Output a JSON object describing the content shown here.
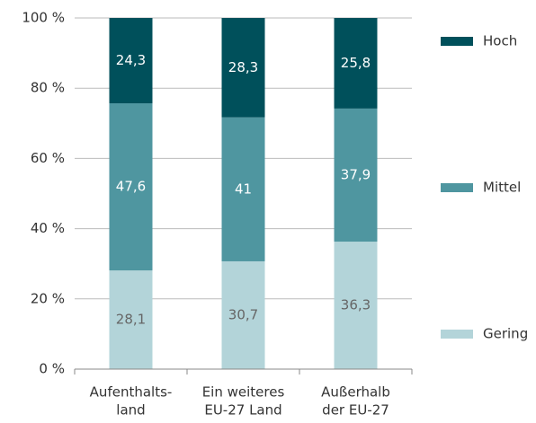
{
  "chart_data": {
    "type": "stacked_bar",
    "categories": [
      [
        "Aufenthalts-",
        "land"
      ],
      [
        "Ein weiteres",
        "EU-27 Land"
      ],
      [
        "Außerhalb",
        "der EU-27"
      ]
    ],
    "series": [
      {
        "name": "Gering",
        "color": "#b3d4d9",
        "label_color": "#666666",
        "values": [
          28.1,
          30.7,
          36.3
        ],
        "value_labels": [
          "28,1",
          "30,7",
          "36,3"
        ]
      },
      {
        "name": "Mittel",
        "color": "#4f96a0",
        "label_color": "#ffffff",
        "values": [
          47.6,
          41,
          37.9
        ],
        "value_labels": [
          "47,6",
          "41",
          "37,9"
        ]
      },
      {
        "name": "Hoch",
        "color": "#00505b",
        "label_color": "#ffffff",
        "values": [
          24.3,
          28.3,
          25.8
        ],
        "value_labels": [
          "24,3",
          "28,3",
          "25,8"
        ]
      }
    ],
    "ylim": [
      0,
      100
    ],
    "yticks": [
      {
        "value": 0,
        "label": "0 %"
      },
      {
        "value": 20,
        "label": "20 %"
      },
      {
        "value": 40,
        "label": "40 %"
      },
      {
        "value": 60,
        "label": "60 %"
      },
      {
        "value": 80,
        "label": "80 %"
      },
      {
        "value": 100,
        "label": "100 %"
      }
    ],
    "grid": true,
    "legend": "right"
  }
}
